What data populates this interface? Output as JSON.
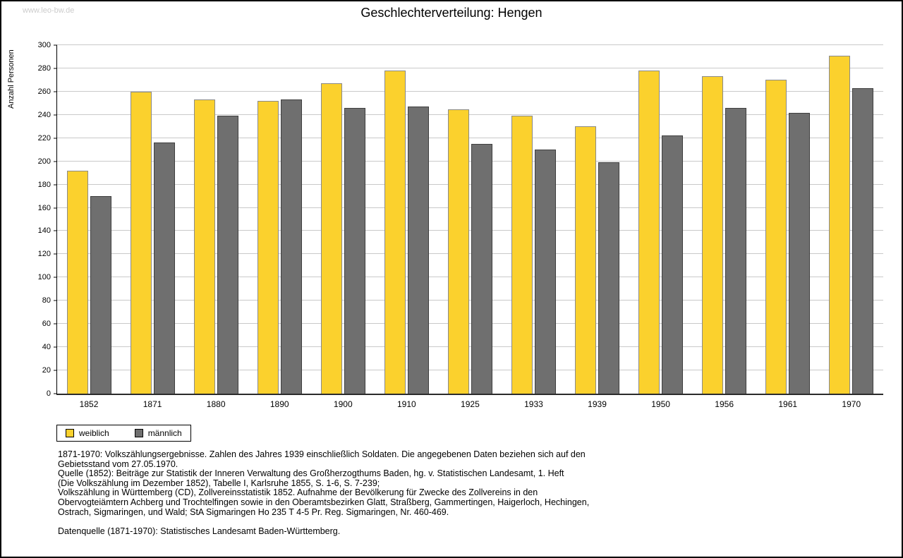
{
  "watermark": "www.leo-bw.de",
  "title": "Geschlechterverteilung: Hengen",
  "chart_data": {
    "type": "bar",
    "title": "Geschlechterverteilung: Hengen",
    "xlabel": "",
    "ylabel": "Anzahl Personen",
    "ylim": [
      0,
      300
    ],
    "yticks": [
      0,
      20,
      40,
      60,
      80,
      100,
      120,
      140,
      160,
      180,
      200,
      220,
      240,
      260,
      280,
      300
    ],
    "grid": true,
    "legend_position": "bottom-left",
    "categories": [
      "1852",
      "1871",
      "1880",
      "1890",
      "1900",
      "1910",
      "1925",
      "1933",
      "1939",
      "1950",
      "1956",
      "1961",
      "1970"
    ],
    "series": [
      {
        "name": "weiblich",
        "color": "#fbd12d",
        "border": "#8a8a8a",
        "values": [
          192,
          260,
          253,
          252,
          267,
          278,
          245,
          239,
          230,
          278,
          273,
          270,
          291
        ]
      },
      {
        "name": "männlich",
        "color": "#6f6f6f",
        "border": "#3f3f3f",
        "values": [
          170,
          216,
          239,
          253,
          246,
          247,
          215,
          210,
          199,
          222,
          246,
          242,
          263
        ]
      }
    ]
  },
  "footer": {
    "lines": [
      "1871-1970: Volkszählungsergebnisse. Zahlen des Jahres 1939 einschließlich Soldaten. Die angegebenen Daten beziehen sich auf den",
      "Gebietsstand vom 27.05.1970.",
      "Quelle (1852): Beiträge zur Statistik der Inneren Verwaltung des Großherzogthums Baden, hg. v. Statistischen Landesamt, 1. Heft",
      "(Die Volkszählung im Dezember 1852), Tabelle I, Karlsruhe 1855, S. 1-6, S. 7-239;",
      "Volkszählung in Württemberg (CD), Zollvereinsstatistik 1852. Aufnahme der Bevölkerung für Zwecke des Zollvereins in den",
      "Obervogteiämtern Achberg und Trochtelfingen sowie in den Oberamtsbezirken Glatt, Straßberg, Gammertingen, Haigerloch, Hechingen,",
      "Ostrach, Sigmaringen, und Wald; StA Sigmaringen Ho 235 T 4-5 Pr. Reg. Sigmaringen, Nr. 460-469.",
      "",
      "Datenquelle (1871-1970): Statistisches Landesamt Baden-Württemberg."
    ]
  }
}
